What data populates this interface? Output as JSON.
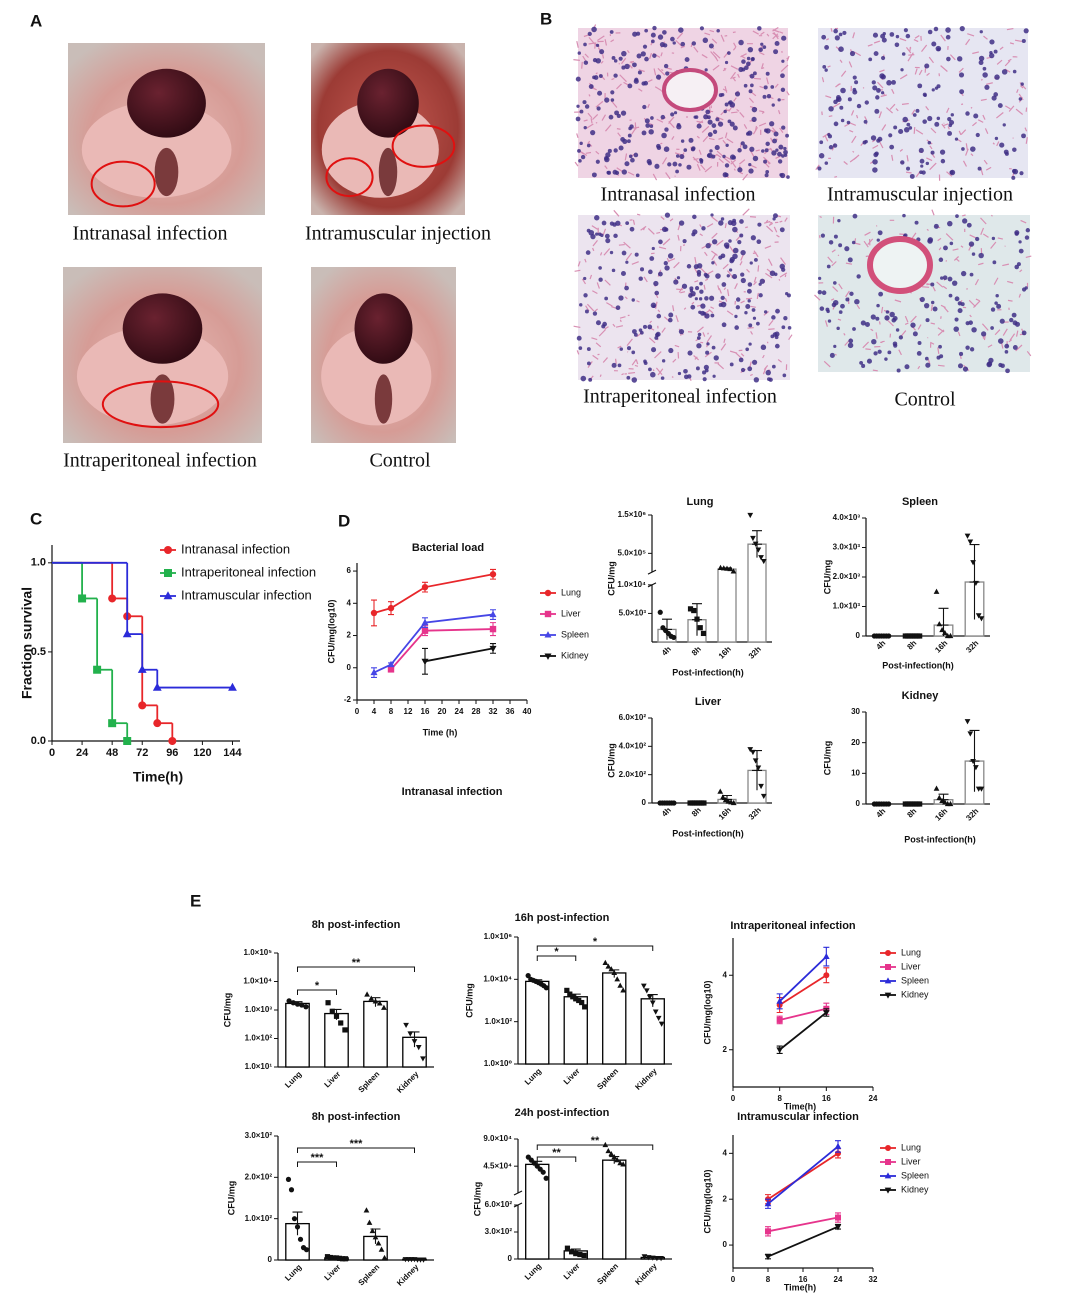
{
  "figure": {
    "panel_a": {
      "label": "A",
      "captions": [
        "Intranasal infection",
        "Intramuscular injection",
        "Intraperitoneal infection",
        "Control"
      ]
    },
    "panel_b": {
      "label": "B",
      "captions": [
        "Intranasal infection",
        "Intramuscular injection",
        "Intraperitoneal infection",
        "Control"
      ]
    },
    "panel_c": {
      "label": "C"
    },
    "panel_d": {
      "label": "D"
    },
    "panel_e": {
      "label": "E"
    }
  },
  "chart_data": [
    {
      "type": "line",
      "step": true,
      "x_label": "Time(h)",
      "y_label": "Fraction survival",
      "xlim": [
        0,
        150
      ],
      "xticks": [
        0,
        24,
        48,
        72,
        96,
        120,
        144
      ],
      "ylim": [
        0,
        1.1
      ],
      "yticks": [
        {
          "value": 0,
          "label": "0.0"
        },
        {
          "value": 0.5,
          "label": "0.5"
        },
        {
          "value": 1,
          "label": "1.0"
        }
      ],
      "legend": "top-right",
      "series": [
        {
          "name": "Intranasal infection",
          "color": "#e8262a",
          "marker": "circle",
          "x": [
            0,
            48,
            60,
            72,
            84,
            96
          ],
          "values": [
            1,
            0.8,
            0.7,
            0.2,
            0.1,
            0
          ]
        },
        {
          "name": "Intraperitoneal infection",
          "color": "#22b14c",
          "marker": "square",
          "x": [
            0,
            24,
            36,
            48,
            60
          ],
          "values": [
            1,
            0.8,
            0.4,
            0.1,
            0
          ]
        },
        {
          "name": "Intramuscular infection",
          "color": "#2b2bd9",
          "marker": "triangle",
          "x": [
            0,
            60,
            72,
            84,
            144
          ],
          "values": [
            1,
            0.6,
            0.4,
            0.3,
            0.3
          ]
        }
      ]
    },
    {
      "type": "line",
      "title": "Bacterial load",
      "x_label": "Time (h)",
      "y_label": "CFU/mg(log10)",
      "caption": "Intranasal infection",
      "xlim": [
        0,
        40
      ],
      "xticks": [
        0,
        4,
        8,
        12,
        16,
        20,
        24,
        28,
        32,
        36,
        40
      ],
      "ylim": [
        -2,
        6.5
      ],
      "yticks": [
        -2,
        0,
        2,
        4,
        6
      ],
      "legend": "right",
      "series": [
        {
          "name": "Lung",
          "color": "#e8262a",
          "marker": "circle",
          "x": [
            4,
            8,
            16,
            32
          ],
          "values": [
            3.4,
            3.7,
            5.0,
            5.8
          ],
          "errors": [
            0.8,
            0.4,
            0.3,
            0.3
          ]
        },
        {
          "name": "Liver",
          "color": "#e6348c",
          "marker": "square",
          "x": [
            8,
            16,
            32
          ],
          "values": [
            -0.1,
            2.3,
            2.4
          ],
          "errors": [
            0.1,
            0.3,
            0.4
          ]
        },
        {
          "name": "Spleen",
          "color": "#4646e6",
          "marker": "triangle",
          "x": [
            4,
            8,
            16,
            32
          ],
          "values": [
            -0.3,
            0.2,
            2.8,
            3.3
          ],
          "errors": [
            0.3,
            0.1,
            0.3,
            0.3
          ]
        },
        {
          "name": "Kidney",
          "color": "#111111",
          "marker": "triangle-down",
          "x": [
            16,
            32
          ],
          "values": [
            0.4,
            1.2
          ],
          "errors": [
            0.8,
            0.3
          ]
        }
      ]
    },
    {
      "type": "bar",
      "title": "Lung",
      "x_label": "Post-infection(h)",
      "y_label": "CFU/mg",
      "color": "#888888",
      "categories": [
        "4h",
        "8h",
        "16h",
        "32h"
      ],
      "markers": [
        "circle",
        "square",
        "triangle",
        "triangle-down"
      ],
      "ylim": [
        0,
        1500000
      ],
      "ybreak": 10000,
      "yticks": [
        {
          "value": 5000,
          "label": "5.0×10³"
        },
        {
          "value": 10000,
          "label": "1.0×10⁴"
        },
        {
          "value": 500000,
          "label": "5.0×10⁵"
        },
        {
          "value": 1500000,
          "label": "1.5×10⁶"
        }
      ],
      "values": [
        2200,
        3900,
        90000,
        740000
      ],
      "errors": [
        1800,
        2800,
        30000,
        350000
      ],
      "points": [
        [
          5200,
          2500,
          2000,
          1500,
          1000,
          800
        ],
        [
          5800,
          5500,
          4000,
          2500,
          1500
        ],
        [
          120000,
          110000,
          100000,
          90000,
          30000
        ],
        [
          1500000,
          900000,
          750000,
          600000,
          400000,
          300000
        ]
      ]
    },
    {
      "type": "bar",
      "title": "Spleen",
      "x_label": "Post-infection(h)",
      "y_label": "CFU/mg",
      "color": "#888888",
      "categories": [
        "4h",
        "8h",
        "16h",
        "32h"
      ],
      "markers": [
        "circle",
        "square",
        "triangle",
        "triangle-down"
      ],
      "ylim": [
        0,
        4000
      ],
      "yticks": [
        0,
        {
          "value": 1000,
          "label": "1.0×10³"
        },
        {
          "value": 2000,
          "label": "2.0×10³"
        },
        {
          "value": 3000,
          "label": "3.0×10³"
        },
        {
          "value": 4000,
          "label": "4.0×10³"
        }
      ],
      "values": [
        0,
        0,
        370,
        1830
      ],
      "errors": [
        0,
        0,
        570,
        1270
      ],
      "points": [
        [
          0,
          0,
          0,
          0,
          0,
          0,
          0
        ],
        [
          0,
          0,
          0,
          0,
          0,
          0,
          0
        ],
        [
          1500,
          400,
          200,
          100,
          0,
          0
        ],
        [
          3400,
          3200,
          2500,
          1800,
          700,
          600
        ]
      ]
    },
    {
      "type": "bar",
      "title": "Liver",
      "x_label": "Post-infection(h)",
      "y_label": "CFU/mg",
      "color": "#888888",
      "categories": [
        "4h",
        "8h",
        "16h",
        "32h"
      ],
      "markers": [
        "circle",
        "square",
        "triangle",
        "triangle-down"
      ],
      "ylim": [
        0,
        600
      ],
      "yticks": [
        0,
        {
          "value": 200,
          "label": "2.0×10²"
        },
        {
          "value": 400,
          "label": "4.0×10²"
        },
        {
          "value": 600,
          "label": "6.0×10²"
        }
      ],
      "values": [
        0,
        0,
        25,
        230
      ],
      "errors": [
        0,
        0,
        28,
        140
      ],
      "points": [
        [
          0,
          0,
          0,
          0,
          0,
          0,
          0
        ],
        [
          0,
          0,
          0,
          0,
          0,
          0,
          0
        ],
        [
          80,
          40,
          20,
          10,
          5,
          0
        ],
        [
          380,
          360,
          300,
          250,
          120,
          50
        ]
      ]
    },
    {
      "type": "bar",
      "title": "Kidney",
      "x_label": "Post-infection(h)",
      "y_label": "CFU/mg",
      "color": "#888888",
      "categories": [
        "4h",
        "8h",
        "16h",
        "32h"
      ],
      "markers": [
        "circle",
        "square",
        "triangle",
        "triangle-down"
      ],
      "ylim": [
        0,
        30
      ],
      "yticks": [
        0,
        10,
        20,
        30
      ],
      "values": [
        0,
        0,
        1.4,
        14
      ],
      "errors": [
        0,
        0,
        1.8,
        10
      ],
      "points": [
        [
          0,
          0,
          0,
          0,
          0,
          0,
          0
        ],
        [
          0,
          0,
          0,
          0,
          0,
          0,
          0
        ],
        [
          5,
          2,
          1,
          0.5,
          0,
          0
        ],
        [
          27,
          23,
          14,
          12,
          5,
          5
        ]
      ]
    },
    {
      "type": "bar",
      "title": "8h post-infection",
      "y_label": "CFU/mg",
      "color": "#000000",
      "log_y": true,
      "categories": [
        "Lung",
        "Liver",
        "Spleen",
        "Kidney"
      ],
      "markers": [
        "circle",
        "square",
        "triangle",
        "triangle-down"
      ],
      "ylim": [
        10,
        100000
      ],
      "yticks": [
        {
          "value": 10,
          "label": "1.0×10¹"
        },
        {
          "value": 100,
          "label": "1.0×10²"
        },
        {
          "value": 1000,
          "label": "1.0×10³"
        },
        {
          "value": 10000,
          "label": "1.0×10⁴"
        },
        {
          "value": 100000,
          "label": "1.0×10⁵"
        }
      ],
      "values": [
        1700,
        750,
        2000,
        110
      ],
      "errors": [
        250,
        300,
        700,
        60
      ],
      "points": [
        [
          2100,
          1800,
          1600,
          1500,
          1300
        ],
        [
          1800,
          900,
          600,
          350,
          200
        ],
        [
          3500,
          2500,
          2000,
          1700,
          1200
        ],
        [
          300,
          150,
          80,
          50,
          20
        ]
      ],
      "annotations": [
        {
          "from": "Lung",
          "to": "Liver",
          "label": "*"
        },
        {
          "from": "Lung",
          "to": "Kidney",
          "label": "**"
        }
      ]
    },
    {
      "type": "bar",
      "title": "16h post-infection",
      "y_label": "CFU/mg",
      "color": "#000000",
      "log_y": true,
      "categories": [
        "Lung",
        "Liver",
        "Spleen",
        "Kidney"
      ],
      "markers": [
        "circle",
        "square",
        "triangle",
        "triangle-down"
      ],
      "ylim": [
        1,
        1000000
      ],
      "yticks": [
        {
          "value": 1,
          "label": "1.0×10⁰"
        },
        {
          "value": 100,
          "label": "1.0×10²"
        },
        {
          "value": 10000,
          "label": "1.0×10⁴"
        },
        {
          "value": 1000000,
          "label": "1.0×10⁶"
        }
      ],
      "values": [
        8000,
        1500,
        20000,
        1200
      ],
      "errors": [
        1500,
        500,
        8000,
        700
      ],
      "points": [
        [
          15000,
          10000,
          9000,
          8000,
          7000,
          6000,
          5000,
          4000
        ],
        [
          3000,
          2000,
          1500,
          1200,
          1000,
          800,
          500
        ],
        [
          60000,
          40000,
          30000,
          20000,
          10000,
          5000,
          3000
        ],
        [
          5000,
          3000,
          1500,
          800,
          300,
          150,
          80
        ]
      ],
      "annotations": [
        {
          "from": "Lung",
          "to": "Liver",
          "label": "*"
        },
        {
          "from": "Lung",
          "to": "Kidney",
          "label": "*"
        }
      ]
    },
    {
      "type": "line",
      "title": "Intraperitoneal infection",
      "x_label": "Time(h)",
      "y_label": "CFU/mg(log10)",
      "xlim": [
        0,
        24
      ],
      "xticks": [
        0,
        8,
        16,
        24
      ],
      "ylim": [
        1,
        5
      ],
      "yticks": [
        2,
        4
      ],
      "legend": "right",
      "series": [
        {
          "name": "Lung",
          "color": "#e8262a",
          "marker": "circle",
          "x": [
            8,
            16
          ],
          "values": [
            3.2,
            4.0
          ],
          "errors": [
            0.2,
            0.2
          ]
        },
        {
          "name": "Liver",
          "color": "#e6348c",
          "marker": "square",
          "x": [
            8,
            16
          ],
          "values": [
            2.8,
            3.1
          ],
          "errors": [
            0.1,
            0.15
          ]
        },
        {
          "name": "Spleen",
          "color": "#2b2bd9",
          "marker": "triangle",
          "x": [
            8,
            16
          ],
          "values": [
            3.3,
            4.5
          ],
          "errors": [
            0.2,
            0.25
          ]
        },
        {
          "name": "Kidney",
          "color": "#111111",
          "marker": "triangle-down",
          "x": [
            8,
            16
          ],
          "values": [
            2.0,
            3.0
          ],
          "errors": [
            0.1,
            0.1
          ]
        }
      ]
    },
    {
      "type": "bar",
      "title": "8h post-infection",
      "y_label": "CFU/mg",
      "color": "#000000",
      "categories": [
        "Lung",
        "Liver",
        "Spleen",
        "Kidney"
      ],
      "markers": [
        "circle",
        "square",
        "triangle",
        "triangle-down"
      ],
      "ylim": [
        0,
        300
      ],
      "yticks": [
        0,
        {
          "value": 100,
          "label": "1.0×10²"
        },
        {
          "value": 200,
          "label": "2.0×10²"
        },
        {
          "value": 300,
          "label": "3.0×10²"
        }
      ],
      "values": [
        88,
        5,
        57,
        2
      ],
      "errors": [
        28,
        2,
        18,
        1
      ],
      "points": [
        [
          195,
          170,
          100,
          80,
          50,
          30,
          25
        ],
        [
          8,
          6,
          5,
          5,
          4,
          3,
          3
        ],
        [
          120,
          90,
          70,
          55,
          40,
          25,
          5
        ],
        [
          2,
          2,
          2,
          2,
          1,
          1,
          1
        ]
      ],
      "annotations": [
        {
          "from": "Lung",
          "to": "Liver",
          "label": "***"
        },
        {
          "from": "Lung",
          "to": "Kidney",
          "label": "***"
        }
      ]
    },
    {
      "type": "bar",
      "title": "24h post-infection",
      "y_label": "CFU/mg",
      "color": "#000000",
      "categories": [
        "Lung",
        "Liver",
        "Spleen",
        "Kidney"
      ],
      "markers": [
        "circle",
        "square",
        "triangle",
        "triangle-down"
      ],
      "ylim": [
        0,
        90000
      ],
      "ybreak": 600,
      "yticks": [
        0,
        {
          "value": 300,
          "label": "3.0×10²"
        },
        {
          "value": 600,
          "label": "6.0×10²"
        },
        {
          "value": 45000,
          "label": "4.5×10⁴"
        },
        {
          "value": 90000,
          "label": "9.0×10⁴"
        }
      ],
      "values": [
        48000,
        90,
        55000,
        17
      ],
      "errors": [
        5000,
        20,
        6000,
        5
      ],
      "points": [
        [
          60000,
          55000,
          50000,
          45000,
          40000,
          35000,
          25000
        ],
        [
          120,
          80,
          60,
          50,
          40
        ],
        [
          80000,
          70000,
          65000,
          60000,
          55000,
          50000,
          48000
        ],
        [
          30,
          20,
          15,
          10,
          10
        ]
      ],
      "annotations": [
        {
          "from": "Lung",
          "to": "Liver",
          "label": "**"
        },
        {
          "from": "Lung",
          "to": "Kidney",
          "label": "**"
        }
      ]
    },
    {
      "type": "line",
      "title": "Intramuscular infection",
      "x_label": "Time(h)",
      "y_label": "CFU/mg(log10)",
      "xlim": [
        0,
        32
      ],
      "xticks": [
        0,
        8,
        16,
        24,
        32
      ],
      "ylim": [
        -1,
        4.8
      ],
      "yticks": [
        0,
        2,
        4
      ],
      "legend": "right",
      "series": [
        {
          "name": "Lung",
          "color": "#e8262a",
          "marker": "circle",
          "x": [
            8,
            24
          ],
          "values": [
            2.0,
            4.0
          ],
          "errors": [
            0.2,
            0.2
          ]
        },
        {
          "name": "Liver",
          "color": "#e6348c",
          "marker": "square",
          "x": [
            8,
            24
          ],
          "values": [
            0.6,
            1.2
          ],
          "errors": [
            0.2,
            0.2
          ]
        },
        {
          "name": "Spleen",
          "color": "#2b2bd9",
          "marker": "triangle",
          "x": [
            8,
            24
          ],
          "values": [
            1.8,
            4.3
          ],
          "errors": [
            0.2,
            0.25
          ]
        },
        {
          "name": "Kidney",
          "color": "#111111",
          "marker": "triangle-down",
          "x": [
            8,
            24
          ],
          "values": [
            -0.5,
            0.8
          ],
          "errors": [
            0.1,
            0.1
          ]
        }
      ]
    }
  ]
}
